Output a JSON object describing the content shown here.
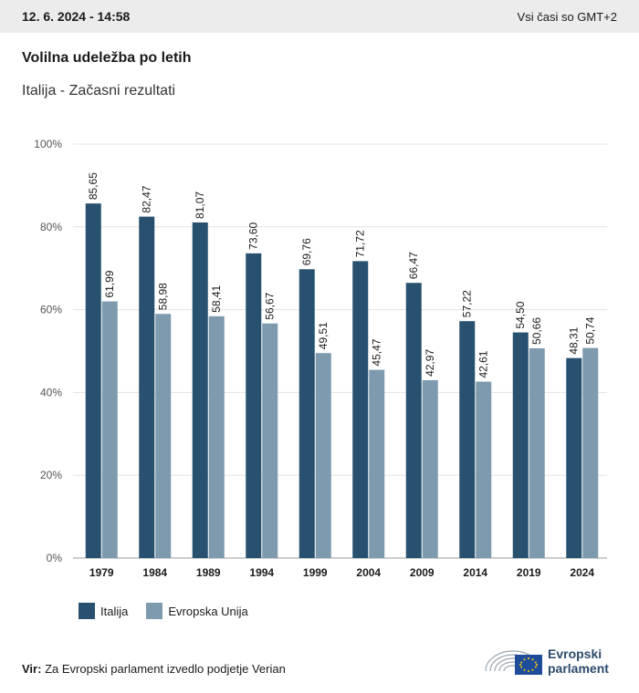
{
  "header": {
    "timestamp": "12. 6. 2024 - 14:58",
    "timezone": "Vsi časi so GMT+2"
  },
  "chart_data": {
    "type": "bar",
    "title": "Volilna udeležba po letih",
    "subtitle": "Italija - Začasni rezultati",
    "categories": [
      "1979",
      "1984",
      "1989",
      "1994",
      "1999",
      "2004",
      "2009",
      "2014",
      "2019",
      "2024"
    ],
    "series": [
      {
        "name": "Italija",
        "color": "#28516f",
        "values": [
          85.65,
          82.47,
          81.07,
          73.6,
          69.76,
          71.72,
          66.47,
          57.22,
          54.5,
          48.31
        ]
      },
      {
        "name": "Evropska Unija",
        "color": "#7e9aae",
        "values": [
          61.99,
          58.98,
          58.41,
          56.67,
          49.51,
          45.47,
          42.97,
          42.61,
          50.66,
          50.74
        ]
      }
    ],
    "value_labels": [
      [
        "85,65",
        "82,47",
        "81,07",
        "73,60",
        "69,76",
        "71,72",
        "66,47",
        "57,22",
        "54,50",
        "48,31"
      ],
      [
        "61,99",
        "58,98",
        "58,41",
        "56,67",
        "49,51",
        "45,47",
        "42,97",
        "42,61",
        "50,66",
        "50,74"
      ]
    ],
    "y_ticks": [
      "0%",
      "20%",
      "40%",
      "60%",
      "80%",
      "100%"
    ],
    "ylim": [
      0,
      100
    ],
    "grid": true,
    "legend_position": "bottom-left"
  },
  "footer": {
    "source_label": "Vir:",
    "source_text": "Za Evropski parlament izvedlo podjetje Verian",
    "logo_line1": "Evropski",
    "logo_line2": "parlament"
  }
}
